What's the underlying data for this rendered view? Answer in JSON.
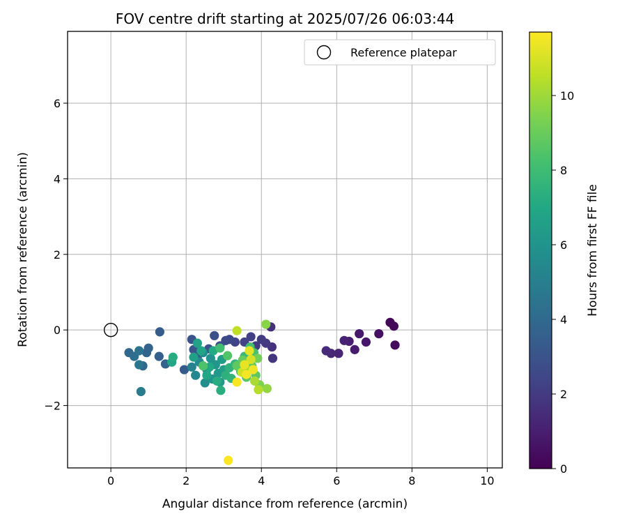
{
  "chart_data": {
    "type": "scatter",
    "title": "FOV centre drift starting at 2025/07/26 06:03:44",
    "xlabel": "Angular distance from reference (arcmin)",
    "ylabel": "Rotation from reference (arcmin)",
    "xlim": [
      -1.15,
      10.4
    ],
    "ylim": [
      -3.65,
      7.9
    ],
    "xticks": [
      0,
      2,
      4,
      6,
      8,
      10
    ],
    "yticks": [
      -2,
      0,
      2,
      4,
      6
    ],
    "xtick_labels": [
      "0",
      "2",
      "4",
      "6",
      "8",
      "10"
    ],
    "ytick_labels": [
      "−2",
      "0",
      "2",
      "4",
      "6"
    ],
    "grid": true,
    "legend": {
      "placement": "top-right",
      "entries": [
        {
          "label": "Reference platepar",
          "marker": "open-circle"
        }
      ]
    },
    "reference_point": {
      "x": 0,
      "y": 0
    },
    "colorbar": {
      "label": "Hours from first FF file",
      "range": [
        0,
        11.7
      ],
      "ticks": [
        0,
        2,
        4,
        6,
        8,
        10
      ],
      "tick_labels": [
        "0",
        "2",
        "4",
        "6",
        "8",
        "10"
      ],
      "colormap": "viridis"
    },
    "points": [
      {
        "x": 7.42,
        "y": 0.2,
        "h": 0.1
      },
      {
        "x": 7.52,
        "y": 0.1,
        "h": 0.2
      },
      {
        "x": 7.55,
        "y": -0.4,
        "h": 0.3
      },
      {
        "x": 7.12,
        "y": -0.1,
        "h": 0.5
      },
      {
        "x": 6.78,
        "y": -0.32,
        "h": 0.7
      },
      {
        "x": 6.6,
        "y": -0.1,
        "h": 0.8
      },
      {
        "x": 6.48,
        "y": -0.52,
        "h": 0.9
      },
      {
        "x": 6.33,
        "y": -0.3,
        "h": 1.0
      },
      {
        "x": 6.2,
        "y": -0.28,
        "h": 1.1
      },
      {
        "x": 6.05,
        "y": -0.62,
        "h": 1.2
      },
      {
        "x": 5.85,
        "y": -0.62,
        "h": 1.3
      },
      {
        "x": 5.72,
        "y": -0.55,
        "h": 1.4
      },
      {
        "x": 4.25,
        "y": 0.08,
        "h": 1.6
      },
      {
        "x": 4.28,
        "y": -0.45,
        "h": 1.7
      },
      {
        "x": 4.3,
        "y": -0.75,
        "h": 1.8
      },
      {
        "x": 4.12,
        "y": -0.35,
        "h": 1.9
      },
      {
        "x": 4.0,
        "y": -0.25,
        "h": 2.0
      },
      {
        "x": 3.85,
        "y": -0.42,
        "h": 2.1
      },
      {
        "x": 3.72,
        "y": -0.18,
        "h": 2.2
      },
      {
        "x": 3.55,
        "y": -0.32,
        "h": 2.3
      },
      {
        "x": 3.3,
        "y": -0.32,
        "h": 2.4
      },
      {
        "x": 3.15,
        "y": -0.25,
        "h": 2.5
      },
      {
        "x": 3.05,
        "y": -0.28,
        "h": 2.6
      },
      {
        "x": 2.9,
        "y": -0.42,
        "h": 2.7
      },
      {
        "x": 2.75,
        "y": -0.15,
        "h": 2.8
      },
      {
        "x": 2.6,
        "y": -0.5,
        "h": 2.9
      },
      {
        "x": 2.15,
        "y": -0.25,
        "h": 3.0
      },
      {
        "x": 2.2,
        "y": -0.52,
        "h": 3.1
      },
      {
        "x": 2.3,
        "y": -0.7,
        "h": 3.2
      },
      {
        "x": 1.95,
        "y": -1.05,
        "h": 3.3
      },
      {
        "x": 1.3,
        "y": -0.05,
        "h": 3.4
      },
      {
        "x": 1.28,
        "y": -0.7,
        "h": 3.5
      },
      {
        "x": 1.45,
        "y": -0.9,
        "h": 3.6
      },
      {
        "x": 1.0,
        "y": -0.48,
        "h": 3.7
      },
      {
        "x": 0.95,
        "y": -0.6,
        "h": 3.8
      },
      {
        "x": 0.85,
        "y": -0.95,
        "h": 3.9
      },
      {
        "x": 0.48,
        "y": -0.6,
        "h": 4.0
      },
      {
        "x": 0.62,
        "y": -0.7,
        "h": 4.2
      },
      {
        "x": 0.75,
        "y": -0.55,
        "h": 4.4
      },
      {
        "x": 0.75,
        "y": -0.92,
        "h": 4.6
      },
      {
        "x": 0.8,
        "y": -1.63,
        "h": 4.8
      },
      {
        "x": 1.62,
        "y": -0.85,
        "h": 6.9
      },
      {
        "x": 1.65,
        "y": -0.72,
        "h": 7.2
      },
      {
        "x": 2.15,
        "y": -0.98,
        "h": 5.2
      },
      {
        "x": 2.25,
        "y": -1.2,
        "h": 5.4
      },
      {
        "x": 2.35,
        "y": -0.85,
        "h": 5.5
      },
      {
        "x": 2.45,
        "y": -0.6,
        "h": 5.6
      },
      {
        "x": 2.5,
        "y": -1.4,
        "h": 5.7
      },
      {
        "x": 2.55,
        "y": -1.05,
        "h": 5.8
      },
      {
        "x": 2.65,
        "y": -0.75,
        "h": 5.9
      },
      {
        "x": 2.7,
        "y": -1.3,
        "h": 6.0
      },
      {
        "x": 2.78,
        "y": -0.92,
        "h": 6.1
      },
      {
        "x": 2.85,
        "y": -1.15,
        "h": 6.2
      },
      {
        "x": 2.9,
        "y": -1.38,
        "h": 6.3
      },
      {
        "x": 2.95,
        "y": -0.78,
        "h": 6.4
      },
      {
        "x": 3.0,
        "y": -1.05,
        "h": 6.5
      },
      {
        "x": 2.2,
        "y": -0.72,
        "h": 6.6
      },
      {
        "x": 2.3,
        "y": -0.35,
        "h": 6.7
      },
      {
        "x": 2.4,
        "y": -0.55,
        "h": 6.8
      },
      {
        "x": 2.55,
        "y": -1.2,
        "h": 6.9
      },
      {
        "x": 2.62,
        "y": -0.98,
        "h": 7.0
      },
      {
        "x": 2.72,
        "y": -0.55,
        "h": 7.1
      },
      {
        "x": 2.82,
        "y": -1.35,
        "h": 7.2
      },
      {
        "x": 2.92,
        "y": -1.6,
        "h": 7.3
      },
      {
        "x": 3.05,
        "y": -1.2,
        "h": 7.4
      },
      {
        "x": 3.15,
        "y": -1.0,
        "h": 7.5
      },
      {
        "x": 3.2,
        "y": -1.28,
        "h": 7.6
      },
      {
        "x": 3.3,
        "y": -0.9,
        "h": 7.7
      },
      {
        "x": 3.45,
        "y": -1.1,
        "h": 7.8
      },
      {
        "x": 3.55,
        "y": -0.7,
        "h": 7.9
      },
      {
        "x": 3.62,
        "y": -0.9,
        "h": 8.0
      },
      {
        "x": 2.9,
        "y": -0.48,
        "h": 8.1
      },
      {
        "x": 3.7,
        "y": -0.45,
        "h": 8.2
      },
      {
        "x": 3.8,
        "y": -0.6,
        "h": 8.3
      },
      {
        "x": 2.45,
        "y": -0.95,
        "h": 8.4
      },
      {
        "x": 3.1,
        "y": -0.68,
        "h": 8.5
      },
      {
        "x": 3.6,
        "y": -1.25,
        "h": 8.6
      },
      {
        "x": 3.85,
        "y": -1.2,
        "h": 8.7
      },
      {
        "x": 3.35,
        "y": -0.95,
        "h": 8.8
      },
      {
        "x": 3.75,
        "y": -0.95,
        "h": 8.9
      },
      {
        "x": 3.5,
        "y": -0.8,
        "h": 9.0
      },
      {
        "x": 3.9,
        "y": -0.75,
        "h": 9.2
      },
      {
        "x": 3.95,
        "y": -1.45,
        "h": 9.4
      },
      {
        "x": 4.12,
        "y": 0.15,
        "h": 9.6
      },
      {
        "x": 4.15,
        "y": -1.55,
        "h": 9.8
      },
      {
        "x": 3.6,
        "y": -1.05,
        "h": 10.0
      },
      {
        "x": 3.82,
        "y": -1.35,
        "h": 10.2
      },
      {
        "x": 3.92,
        "y": -1.58,
        "h": 10.4
      },
      {
        "x": 3.35,
        "y": -0.02,
        "h": 10.6
      },
      {
        "x": 3.48,
        "y": -1.12,
        "h": 10.8
      },
      {
        "x": 3.72,
        "y": -0.78,
        "h": 11.0
      },
      {
        "x": 3.68,
        "y": -0.55,
        "h": 11.2
      },
      {
        "x": 3.55,
        "y": -0.92,
        "h": 11.3
      },
      {
        "x": 3.78,
        "y": -1.05,
        "h": 11.4
      },
      {
        "x": 3.6,
        "y": -1.18,
        "h": 11.5
      },
      {
        "x": 3.35,
        "y": -1.38,
        "h": 11.6
      },
      {
        "x": 3.12,
        "y": -3.45,
        "h": 11.7
      }
    ]
  }
}
